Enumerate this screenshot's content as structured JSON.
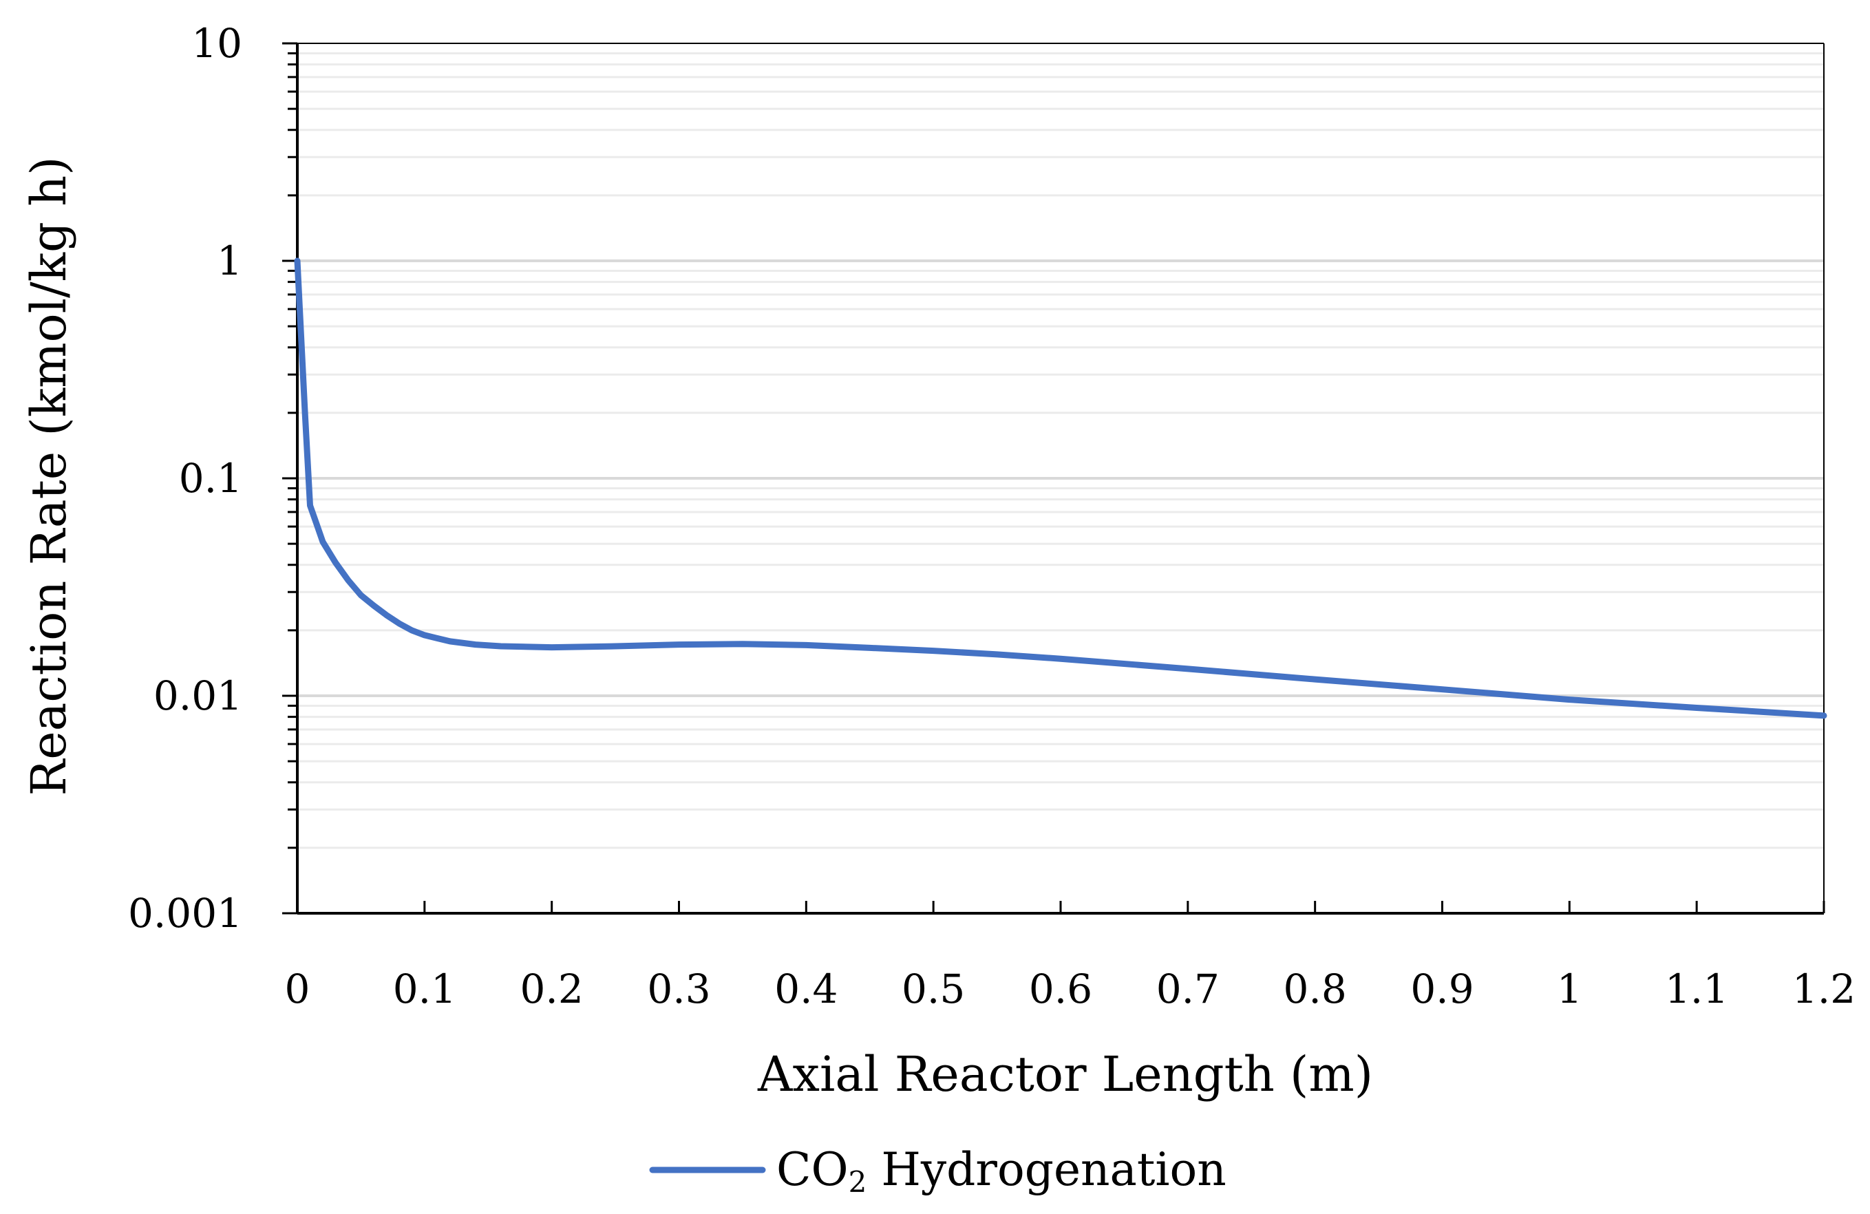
{
  "chart_data": {
    "type": "line",
    "title": "",
    "xlabel": "Axial Reactor Length (m)",
    "ylabel": "Reaction Rate (kmol/kg h)",
    "xlim": [
      0,
      1.2
    ],
    "ylim": [
      0.001,
      10
    ],
    "yscale": "log",
    "grid": "horizontal",
    "x_ticks": [
      0,
      0.1,
      0.2,
      0.3,
      0.4,
      0.5,
      0.6,
      0.7,
      0.8,
      0.9,
      1,
      1.1,
      1.2
    ],
    "x_tick_labels": [
      "0",
      "0.1",
      "0.2",
      "0.3",
      "0.4",
      "0.5",
      "0.6",
      "0.7",
      "0.8",
      "0.9",
      "1",
      "1.1",
      "1.2"
    ],
    "y_ticks": [
      0.001,
      0.01,
      0.1,
      1,
      10
    ],
    "y_tick_labels": [
      "0.001",
      "0.01",
      "0.1",
      "1",
      "10"
    ],
    "legend_position": "bottom-center",
    "series": [
      {
        "name": "CO₂ Hydrogenation",
        "legend_main": "CO",
        "legend_sub": "2",
        "legend_rest": " Hydrogenation",
        "color": "#4472C4",
        "x": [
          0,
          0.003,
          0.006,
          0.01,
          0.015,
          0.02,
          0.03,
          0.04,
          0.05,
          0.06,
          0.07,
          0.08,
          0.09,
          0.1,
          0.12,
          0.14,
          0.16,
          0.2,
          0.25,
          0.3,
          0.35,
          0.4,
          0.45,
          0.5,
          0.55,
          0.6,
          0.7,
          0.8,
          0.9,
          1.0,
          1.1,
          1.2
        ],
        "y": [
          1.0,
          0.45,
          0.2,
          0.075,
          0.062,
          0.051,
          0.041,
          0.034,
          0.029,
          0.026,
          0.0235,
          0.0215,
          0.02,
          0.019,
          0.0178,
          0.0172,
          0.0169,
          0.0167,
          0.0169,
          0.0172,
          0.0173,
          0.0171,
          0.0166,
          0.0161,
          0.0155,
          0.0148,
          0.0133,
          0.0119,
          0.0107,
          0.0096,
          0.0088,
          0.0081
        ]
      }
    ]
  }
}
